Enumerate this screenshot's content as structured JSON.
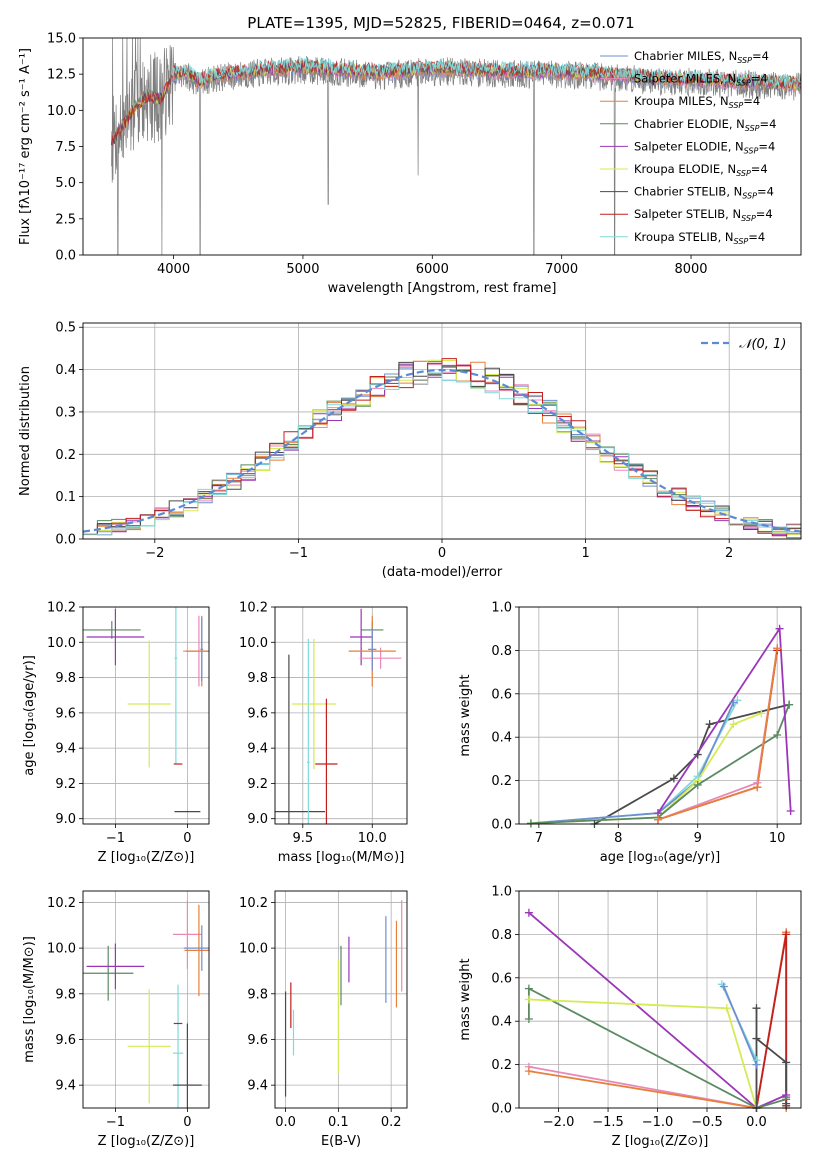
{
  "title": "PLATE=1395, MJD=52825, FIBERID=0464, z=0.071",
  "series": [
    {
      "name": "Chabrier MILES, N",
      "sub": "SSP",
      "tail": "=4",
      "color": "#6f8fce"
    },
    {
      "name": "Salpeter MILES, N",
      "sub": "SSP",
      "tail": "=4",
      "color": "#e889b9"
    },
    {
      "name": "Kroupa MILES, N",
      "sub": "SSP",
      "tail": "=4",
      "color": "#e7803a"
    },
    {
      "name": "Chabrier ELODIE, N",
      "sub": "SSP",
      "tail": "=4",
      "color": "#5a8a62"
    },
    {
      "name": "Salpeter ELODIE, N",
      "sub": "SSP",
      "tail": "=4",
      "color": "#9b36b9"
    },
    {
      "name": "Kroupa ELODIE, N",
      "sub": "SSP",
      "tail": "=4",
      "color": "#d6ea55"
    },
    {
      "name": "Chabrier STELIB, N",
      "sub": "SSP",
      "tail": "=4",
      "color": "#4a4a4a"
    },
    {
      "name": "Salpeter STELIB, N",
      "sub": "SSP",
      "tail": "=4",
      "color": "#c41f1f"
    },
    {
      "name": "Kroupa STELIB, N",
      "sub": "SSP",
      "tail": "=4",
      "color": "#7fdadc"
    }
  ],
  "chart_data": [
    {
      "id": "spectrum",
      "type": "line",
      "xlabel": "wavelength [Angstrom, rest frame]",
      "ylabel": "Flux [fλ10⁻¹⁷ erg cm⁻² s⁻¹ A⁻¹]",
      "xlim": [
        3300,
        8850
      ],
      "ylim": [
        0,
        15
      ],
      "xticks": [
        4000,
        5000,
        6000,
        7000,
        8000
      ],
      "yticks": [
        0.0,
        2.5,
        5.0,
        7.5,
        10.0,
        12.5,
        15.0
      ],
      "data_gray": {
        "name": "data",
        "x_range": [
          3520,
          8850
        ],
        "color": "#7f7f7f"
      },
      "continuum_x": [
        3520,
        3600,
        3700,
        3800,
        3900,
        4000,
        4100,
        4200,
        4300,
        4500,
        4700,
        5000,
        5300,
        5600,
        6000,
        6300,
        6600,
        6900,
        7200,
        7500,
        7800,
        8100,
        8400,
        8700,
        8850
      ],
      "continuum_y": [
        7.8,
        8.8,
        10.2,
        11.0,
        10.8,
        12.3,
        12.4,
        11.8,
        12.2,
        12.4,
        12.6,
        12.8,
        12.6,
        12.4,
        12.7,
        12.6,
        12.5,
        12.5,
        12.4,
        12.2,
        12.0,
        11.9,
        11.8,
        11.7,
        11.6
      ],
      "dips": [
        [
          3570,
          0
        ],
        [
          3910,
          0
        ],
        [
          4205,
          0
        ],
        [
          5195,
          3.5
        ],
        [
          5890,
          5.5
        ],
        [
          6785,
          0
        ],
        [
          7410,
          0
        ]
      ]
    },
    {
      "id": "residuals",
      "type": "step",
      "xlabel": "(data-model)/error",
      "ylabel": "Normed distribution",
      "xlim": [
        -2.5,
        2.5
      ],
      "ylim": [
        0,
        0.51
      ],
      "xticks": [
        -2,
        -1,
        0,
        1,
        2
      ],
      "yticks": [
        0.0,
        0.1,
        0.2,
        0.3,
        0.4,
        0.5
      ],
      "bin_width": 0.1,
      "reference": {
        "name": "𝒩(0, 1)",
        "mean": 0,
        "sigma": 1,
        "color": "#5b8ad6"
      },
      "noise_seed_by_series": [
        11,
        23,
        37,
        41,
        53,
        67,
        71,
        83,
        97
      ],
      "noise_amp": 0.035
    },
    {
      "id": "age_vs_Z",
      "type": "errorbar-cross",
      "xlabel": "Z [log₁₀(Z/Z⊙)]",
      "ylabel": "age  [log₁₀(age/yr)]",
      "xlim": [
        -1.45,
        0.3
      ],
      "ylim": [
        8.97,
        10.2
      ],
      "xticks": [
        -1,
        0
      ],
      "yticks": [
        9.0,
        9.2,
        9.4,
        9.6,
        9.8,
        10.0,
        10.2
      ],
      "points": [
        {
          "s": 3,
          "x": -1.05,
          "xe": 0.4,
          "y": 10.07,
          "ye": 0.05
        },
        {
          "s": 4,
          "x": -1.0,
          "xe": 0.4,
          "y": 10.03,
          "ye": 0.16
        },
        {
          "s": 5,
          "x": -0.53,
          "xe": 0.3,
          "y": 9.65,
          "ye": 0.36
        },
        {
          "s": 8,
          "x": -0.16,
          "xe": 0.02,
          "y": 9.91,
          "ye": 0.6
        },
        {
          "s": 7,
          "x": -0.13,
          "xe": 0.06,
          "y": 9.31,
          "ye": 0.0
        },
        {
          "s": 6,
          "x": 0.0,
          "xe": 0.18,
          "y": 9.04,
          "ye": 0.0
        },
        {
          "s": 1,
          "x": 0.16,
          "xe": 0.22,
          "y": 9.95,
          "ye": 0.2
        },
        {
          "s": 2,
          "x": 0.2,
          "xe": 0.22,
          "y": 9.95,
          "ye": 0.2
        },
        {
          "s": 0,
          "x": 0.2,
          "xe": 0.02,
          "y": 9.96,
          "ye": 0.18
        }
      ]
    },
    {
      "id": "age_vs_mass",
      "type": "errorbar-cross",
      "xlabel": "mass [log₁₀(M/M⊙)]",
      "ylabel": "",
      "xlim": [
        9.3,
        10.25
      ],
      "ylim": [
        8.97,
        10.2
      ],
      "xticks": [
        9.5,
        10.0
      ],
      "yticks": [
        9.0,
        9.2,
        9.4,
        9.6,
        9.8,
        10.0,
        10.2
      ],
      "points": [
        {
          "s": 6,
          "x": 9.4,
          "xe": 0.26,
          "y": 9.04,
          "ye": 0.89
        },
        {
          "s": 8,
          "x": 9.54,
          "xe": 0.01,
          "y": 9.32,
          "ye": 0.7
        },
        {
          "s": 5,
          "x": 9.58,
          "xe": 0.16,
          "y": 9.65,
          "ye": 0.37
        },
        {
          "s": 7,
          "x": 9.67,
          "xe": 0.08,
          "y": 9.31,
          "ye": 0.37
        },
        {
          "s": 3,
          "x": 10.0,
          "xe": 0.08,
          "y": 10.07,
          "ye": 0.05
        },
        {
          "s": 4,
          "x": 9.92,
          "xe": 0.08,
          "y": 10.03,
          "ye": 0.16
        },
        {
          "s": 1,
          "x": 10.06,
          "xe": 0.15,
          "y": 9.91,
          "ye": 0.06
        },
        {
          "s": 2,
          "x": 10.0,
          "xe": 0.17,
          "y": 9.95,
          "ye": 0.2
        },
        {
          "s": 0,
          "x": 10.0,
          "xe": 0.03,
          "y": 9.96,
          "ye": 0.12
        }
      ]
    },
    {
      "id": "weight_vs_age",
      "type": "line-markers",
      "xlabel": "age  [log₁₀(age/yr)]",
      "ylabel": "mass weight",
      "xlim": [
        6.75,
        10.3
      ],
      "ylim": [
        0,
        1.0
      ],
      "xticks": [
        7,
        8,
        9,
        10
      ],
      "yticks": [
        0.0,
        0.2,
        0.4,
        0.6,
        0.8,
        1.0
      ],
      "lines": [
        {
          "s": 6,
          "x": [
            7.7,
            8.7,
            9.0,
            9.15,
            10.15
          ],
          "y": [
            0,
            0.21,
            0.32,
            0.46,
            0.55
          ]
        },
        {
          "s": 8,
          "x": [
            6.9,
            8.5,
            9.0,
            9.5
          ],
          "y": [
            0.003,
            0.05,
            0.22,
            0.57
          ]
        },
        {
          "s": 0,
          "x": [
            6.9,
            8.5,
            9.0,
            9.45
          ],
          "y": [
            0.003,
            0.05,
            0.2,
            0.56
          ]
        },
        {
          "s": 5,
          "x": [
            6.9,
            8.5,
            9.0,
            9.45,
            9.8
          ],
          "y": [
            0.003,
            0.03,
            0.2,
            0.46,
            0.51
          ]
        },
        {
          "s": 3,
          "x": [
            6.9,
            8.5,
            9.0,
            10.0,
            10.15
          ],
          "y": [
            0.003,
            0.03,
            0.18,
            0.41,
            0.55
          ]
        },
        {
          "s": 4,
          "x": [
            8.5,
            10.03,
            10.17
          ],
          "y": [
            0.05,
            0.9,
            0.06
          ]
        },
        {
          "s": 7,
          "x": [
            8.5,
            9.75,
            10.0
          ],
          "y": [
            0.02,
            0.17,
            0.8
          ]
        },
        {
          "s": 1,
          "x": [
            8.5,
            9.75,
            10.0
          ],
          "y": [
            0.02,
            0.19,
            0.81
          ]
        },
        {
          "s": 2,
          "x": [
            8.5,
            9.75,
            10.0
          ],
          "y": [
            0.02,
            0.17,
            0.81
          ]
        }
      ]
    },
    {
      "id": "mass_vs_Z",
      "type": "errorbar-cross",
      "xlabel": "Z [log₁₀(Z/Z⊙)]",
      "ylabel": "mass [log₁₀(M/M⊙)]",
      "xlim": [
        -1.45,
        0.3
      ],
      "ylim": [
        9.3,
        10.25
      ],
      "xticks": [
        -1,
        0
      ],
      "yticks": [
        9.4,
        9.6,
        9.8,
        10.0,
        10.2
      ],
      "points": [
        {
          "s": 3,
          "x": -1.1,
          "xe": 0.35,
          "y": 9.89,
          "ye": 0.12
        },
        {
          "s": 4,
          "x": -1.0,
          "xe": 0.4,
          "y": 9.92,
          "ye": 0.1
        },
        {
          "s": 5,
          "x": -0.53,
          "xe": 0.3,
          "y": 9.57,
          "ye": 0.25
        },
        {
          "s": 8,
          "x": -0.13,
          "xe": 0.07,
          "y": 9.54,
          "ye": 0.3
        },
        {
          "s": 7,
          "x": -0.13,
          "xe": 0.06,
          "y": 9.67,
          "ye": 0.0
        },
        {
          "s": 6,
          "x": 0.0,
          "xe": 0.2,
          "y": 9.4,
          "ye": 0.27
        },
        {
          "s": 1,
          "x": 0.0,
          "xe": 0.2,
          "y": 10.06,
          "ye": 0.15
        },
        {
          "s": 2,
          "x": 0.16,
          "xe": 0.2,
          "y": 9.99,
          "ye": 0.2
        },
        {
          "s": 0,
          "x": 0.2,
          "xe": 0.25,
          "y": 10.0,
          "ye": 0.1
        }
      ]
    },
    {
      "id": "mass_vs_EBV",
      "type": "errorbar-vertical",
      "xlabel": "E(B-V)",
      "ylabel": "",
      "xlim": [
        -0.02,
        0.23
      ],
      "ylim": [
        9.3,
        10.25
      ],
      "xticks": [
        0.0,
        0.1,
        0.2
      ],
      "yticks": [
        9.4,
        9.6,
        9.8,
        10.0,
        10.2
      ],
      "points": [
        {
          "s": 6,
          "x": 0.0,
          "y": 9.58,
          "ye": 0.23
        },
        {
          "s": 7,
          "x": 0.01,
          "y": 9.75,
          "ye": 0.1
        },
        {
          "s": 8,
          "x": 0.015,
          "y": 9.63,
          "ye": 0.1
        },
        {
          "s": 5,
          "x": 0.1,
          "y": 9.7,
          "ye": 0.25
        },
        {
          "s": 3,
          "x": 0.105,
          "y": 9.88,
          "ye": 0.13
        },
        {
          "s": 4,
          "x": 0.12,
          "y": 9.95,
          "ye": 0.1
        },
        {
          "s": 0,
          "x": 0.19,
          "y": 9.95,
          "ye": 0.19
        },
        {
          "s": 2,
          "x": 0.21,
          "y": 9.93,
          "ye": 0.19
        },
        {
          "s": 1,
          "x": 0.22,
          "y": 10.01,
          "ye": 0.2
        }
      ]
    },
    {
      "id": "weight_vs_Z",
      "type": "line-markers",
      "xlabel": "Z [log₁₀(Z/Z⊙)]",
      "ylabel": "mass weight",
      "xlim": [
        -2.4,
        0.45
      ],
      "ylim": [
        0,
        1.0
      ],
      "xticks": [
        -2.0,
        -1.5,
        -1.0,
        -0.5,
        0.0
      ],
      "tick_labels": [
        "−2.0",
        "−1.5",
        "−1.0",
        "−0.5",
        "0.0"
      ],
      "yticks": [
        0.0,
        0.2,
        0.4,
        0.6,
        0.8,
        1.0
      ],
      "lines": [
        {
          "s": 4,
          "x": [
            -2.3,
            0.0,
            0.3,
            0.3
          ],
          "y": [
            0.9,
            0.0,
            0.06,
            0.05
          ]
        },
        {
          "s": 3,
          "x": [
            -2.3,
            -2.3,
            0.0,
            0.3
          ],
          "y": [
            0.41,
            0.55,
            0.0,
            0.04
          ]
        },
        {
          "s": 5,
          "x": [
            -2.3,
            -0.3,
            0.0
          ],
          "y": [
            0.5,
            0.46,
            0.0
          ]
        },
        {
          "s": 1,
          "x": [
            -2.3,
            0.0,
            0.3,
            0.3
          ],
          "y": [
            0.19,
            0.0,
            0.81,
            0.0
          ]
        },
        {
          "s": 2,
          "x": [
            -2.3,
            0.0,
            0.3,
            0.3
          ],
          "y": [
            0.17,
            0.0,
            0.81,
            0.0
          ]
        },
        {
          "s": 7,
          "x": [
            0.0,
            0.3,
            0.3
          ],
          "y": [
            0.0,
            0.8,
            0.02
          ]
        },
        {
          "s": 8,
          "x": [
            -0.35,
            0.0,
            0.0
          ],
          "y": [
            0.57,
            0.22,
            0.0
          ]
        },
        {
          "s": 0,
          "x": [
            -0.33,
            0.0
          ],
          "y": [
            0.56,
            0.2
          ]
        },
        {
          "s": 6,
          "x": [
            0.0,
            0.0,
            0.0,
            0.3,
            0.3
          ],
          "y": [
            0.0,
            0.46,
            0.32,
            0.21,
            0.01
          ]
        }
      ]
    }
  ]
}
